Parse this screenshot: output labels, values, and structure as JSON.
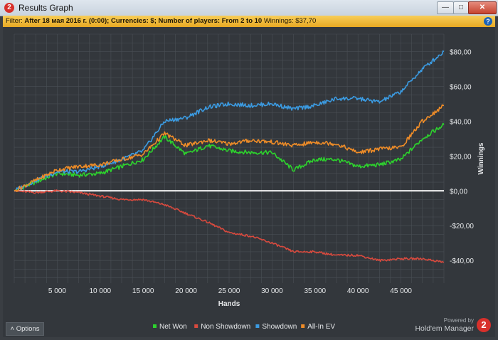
{
  "window": {
    "title": "Results Graph",
    "icon": "hm2-logo-icon",
    "buttons": [
      "minimize",
      "maximize",
      "close"
    ]
  },
  "filter": {
    "label": "Filter:",
    "text": "After 18 мая 2016 г. (0:00); Currencies: $; Number of players: From 2 to 10",
    "winnings": "Winnings: $37,70"
  },
  "footer": {
    "options_label": "Options",
    "powered_by": "Powered by",
    "brand": "Hold'em Manager"
  },
  "colors": {
    "net_won": "#2dd32d",
    "non_showdown": "#d94a3e",
    "showdown": "#3b9be2",
    "all_in_ev": "#ee8c28",
    "zero_line": "#ffffff",
    "grid": "#4a4f55",
    "plot_bg": "#33373c",
    "filter_bar": "#f0b733"
  },
  "chart_data": {
    "type": "line",
    "xlabel": "Hands",
    "ylabel": "Winnings",
    "xlim": [
      0,
      50000
    ],
    "ylim": [
      -53,
      90
    ],
    "x_ticks": [
      5000,
      10000,
      15000,
      20000,
      25000,
      30000,
      35000,
      40000,
      45000
    ],
    "x_tick_labels": [
      "5 000",
      "10 000",
      "15 000",
      "20 000",
      "25 000",
      "30 000",
      "35 000",
      "40 000",
      "45 000"
    ],
    "y_ticks": [
      -40,
      -20,
      0,
      20,
      40,
      60,
      80
    ],
    "y_tick_labels": [
      "-$40,00",
      "-$20,00",
      "$0,00",
      "$20,00",
      "$40,00",
      "$60,00",
      "$80,00"
    ],
    "grid": true,
    "legend_position": "bottom",
    "x": [
      0,
      2500,
      5000,
      7500,
      10000,
      12500,
      15000,
      17500,
      20000,
      22500,
      25000,
      27500,
      30000,
      32500,
      35000,
      37500,
      40000,
      42500,
      45000,
      47500,
      50000
    ],
    "series": [
      {
        "name": "Net Won",
        "color": "#2dd32d",
        "values": [
          0,
          5,
          10,
          9,
          10,
          14,
          18,
          31,
          21,
          26,
          23,
          22,
          22,
          12,
          18,
          18,
          14,
          15,
          18,
          30,
          38
        ]
      },
      {
        "name": "Non Showdown",
        "color": "#d94a3e",
        "values": [
          0,
          -1,
          0,
          -1,
          -3,
          -5,
          -5,
          -8,
          -13,
          -18,
          -24,
          -26,
          -30,
          -35,
          -35,
          -37,
          -37,
          -40,
          -39,
          -39,
          -41
        ]
      },
      {
        "name": "Showdown",
        "color": "#3b9be2",
        "values": [
          0,
          6,
          11,
          11,
          14,
          18,
          23,
          40,
          42,
          48,
          50,
          49,
          50,
          47,
          49,
          53,
          53,
          51,
          57,
          70,
          80
        ]
      },
      {
        "name": "All-In EV",
        "color": "#ee8c28",
        "values": [
          0,
          6,
          12,
          14,
          15,
          18,
          21,
          33,
          26,
          29,
          27,
          29,
          28,
          26,
          28,
          27,
          22,
          24,
          25,
          40,
          49
        ]
      }
    ]
  }
}
